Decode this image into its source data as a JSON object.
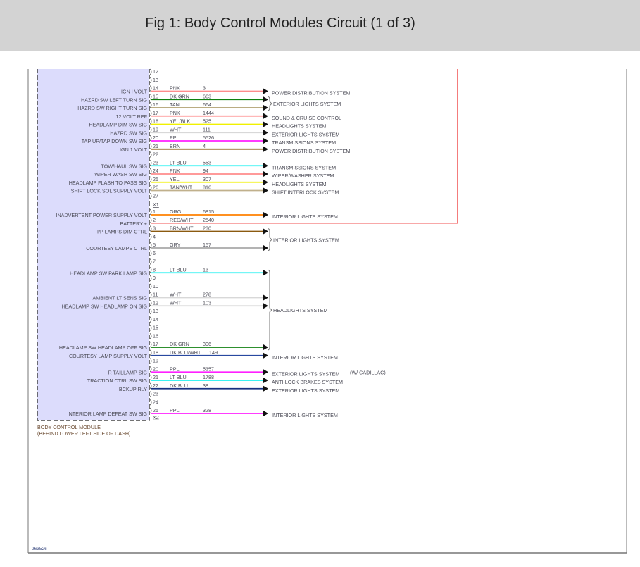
{
  "header": {
    "title": "Fig 1: Body Control Modules Circuit (1 of 3)"
  },
  "module": {
    "name": "BODY CONTROL MODULE",
    "location": "(BEHIND LOWER LEFT SIDE OF DASH)",
    "fill_color": "#dcdcfc"
  },
  "figure_id": "263526",
  "connectors": [
    {
      "id": "X1-upper",
      "label": "",
      "pins": [
        {
          "pin": "12"
        },
        {
          "pin": "13"
        },
        {
          "pin": "14",
          "signal": "IGN I VOLT",
          "wire": "PNK",
          "circuit": "3",
          "color": "#ff8c8c",
          "dest": "POWER DISTRIBUTION SYSTEM"
        },
        {
          "pin": "15",
          "signal": "HAZRD SW LEFT TURN SIG",
          "wire": "DK GRN",
          "circuit": "663",
          "color": "#108010"
        },
        {
          "pin": "16",
          "signal": "HAZRD SW RIGHT TURN SIG",
          "wire": "TAN",
          "circuit": "664",
          "color": "#b0a070"
        },
        {
          "pin": "17",
          "signal": "12 VOLT REF",
          "wire": "PNK",
          "circuit": "1444",
          "color": "#ff8c8c",
          "dest": "SOUND & CRUISE CONTROL"
        },
        {
          "pin": "18",
          "signal": "HEADLAMP DIM SW SIG",
          "wire": "YEL/BLK",
          "circuit": "525",
          "color": "#f0f000",
          "dest": "HEADLIGHTS SYSTEM"
        },
        {
          "pin": "19",
          "signal": "HAZRD SW SIG",
          "wire": "WHT",
          "circuit": "111",
          "color": "#d8d8d8",
          "dest": "EXTERIOR LIGHTS SYSTEM"
        },
        {
          "pin": "20",
          "signal": "TAP UP/TAP DOWN SW SIG",
          "wire": "PPL",
          "circuit": "5526",
          "color": "#ff20ff",
          "dest": "TRANSMISSIONS SYSTEM"
        },
        {
          "pin": "21",
          "signal": "IGN 1 VOLT",
          "wire": "BRN",
          "circuit": "4",
          "color": "#8b5a10",
          "dest": "POWER DISTRIBUTION SYSTEM"
        },
        {
          "pin": "22"
        },
        {
          "pin": "23",
          "signal": "TOW/HAUL SW SIG",
          "wire": "LT BLU",
          "circuit": "553",
          "color": "#20f0f0",
          "dest": "TRANSMISSIONS SYSTEM"
        },
        {
          "pin": "24",
          "signal": "WIPER WASH SW SIG",
          "wire": "PNK",
          "circuit": "94",
          "color": "#ff8c8c",
          "dest": "WIPER/WASHER SYSTEM"
        },
        {
          "pin": "25",
          "signal": "HEADLAMP FLASH TO PASS SIG",
          "wire": "YEL",
          "circuit": "307",
          "color": "#f0f000",
          "dest": "HEADLIGHTS SYSTEM"
        },
        {
          "pin": "26",
          "signal": "SHIFT LOCK SOL SUPPLY VOLT",
          "wire": "TAN/WHT",
          "circuit": "816",
          "color": "#c0b08c",
          "dest": "SHIFT INTERLOCK SYSTEM"
        },
        {
          "pin": "27"
        }
      ],
      "groups": [
        {
          "from": "15",
          "to": "16",
          "dest": "EXTERIOR LIGHTS SYSTEM"
        }
      ]
    },
    {
      "id": "X1-lower",
      "label": "X1",
      "pins": [
        {
          "pin": "1",
          "signal": "INADVERTENT POWER SUPPLY VOLT",
          "wire": "ORG",
          "circuit": "6815",
          "color": "#ff8000",
          "dest": "INTERIOR LIGHTS SYSTEM"
        },
        {
          "pin": "2",
          "signal": "BATTERY +",
          "wire": "RED/WHT",
          "circuit": "2540",
          "color": "#f05050",
          "continues_off_page": true
        },
        {
          "pin": "3",
          "signal": "I/P LAMPS DIM CTRL",
          "wire": "BRN/WHT",
          "circuit": "230",
          "color": "#8b5a10"
        },
        {
          "pin": "4"
        },
        {
          "pin": "5",
          "signal": "COURTESY LAMPS CTRL",
          "wire": "GRY",
          "circuit": "157",
          "color": "#a8a8a8"
        },
        {
          "pin": "6"
        },
        {
          "pin": "7"
        },
        {
          "pin": "8",
          "signal": "HEADLAMP SW PARK LAMP SIG",
          "wire": "LT BLU",
          "circuit": "13",
          "color": "#20f0f0"
        },
        {
          "pin": "9"
        },
        {
          "pin": "10"
        },
        {
          "pin": "11",
          "signal": "AMBIENT LT SENS SIG",
          "wire": "WHT",
          "circuit": "278",
          "color": "#d8d8d8"
        },
        {
          "pin": "12",
          "signal": "HEADLAMP SW HEADLAMP ON SIG",
          "wire": "WHT",
          "circuit": "103",
          "color": "#d8d8d8"
        },
        {
          "pin": "13"
        },
        {
          "pin": "14"
        },
        {
          "pin": "15"
        },
        {
          "pin": "16"
        },
        {
          "pin": "17",
          "signal": "HEADLAMP SW HEADLAMP OFF SIG",
          "wire": "DK GRN",
          "circuit": "306",
          "color": "#108010"
        },
        {
          "pin": "18",
          "signal": "COURTESY LAMP SUPPLY VOLT",
          "wire": "DK BLU/WHT",
          "circuit": "149",
          "color": "#2848a0",
          "dest": "INTERIOR LIGHTS SYSTEM"
        },
        {
          "pin": "19"
        },
        {
          "pin": "20",
          "signal": "R TAILLAMP SIG",
          "wire": "PPL",
          "circuit": "5357",
          "color": "#ff20ff",
          "dest": "EXTERIOR LIGHTS SYSTEM",
          "note": "(W/ CADILLAC)"
        },
        {
          "pin": "21",
          "signal": "TRACTION CTRL SW SIG",
          "wire": "LT BLU",
          "circuit": "1788",
          "color": "#20f0f0",
          "dest": "ANTI-LOCK BRAKES SYSTEM"
        },
        {
          "pin": "22",
          "signal": "BCKUP RLY",
          "wire": "DK BLU",
          "circuit": "38",
          "color": "#183080",
          "dest": "EXTERIOR LIGHTS SYSTEM"
        },
        {
          "pin": "23"
        },
        {
          "pin": "24"
        },
        {
          "pin": "25",
          "signal": "INTERIOR LAMP DEFEAT SW SIG",
          "wire": "PPL",
          "circuit": "328",
          "color": "#ff20ff",
          "dest": "INTERIOR LIGHTS SYSTEM"
        }
      ],
      "groups": [
        {
          "from": "3",
          "to": "5",
          "dest": "INTERIOR LIGHTS SYSTEM"
        },
        {
          "from": "8",
          "to": "17",
          "dest": "HEADLIGHTS SYSTEM"
        }
      ],
      "end_label": "X2"
    }
  ]
}
